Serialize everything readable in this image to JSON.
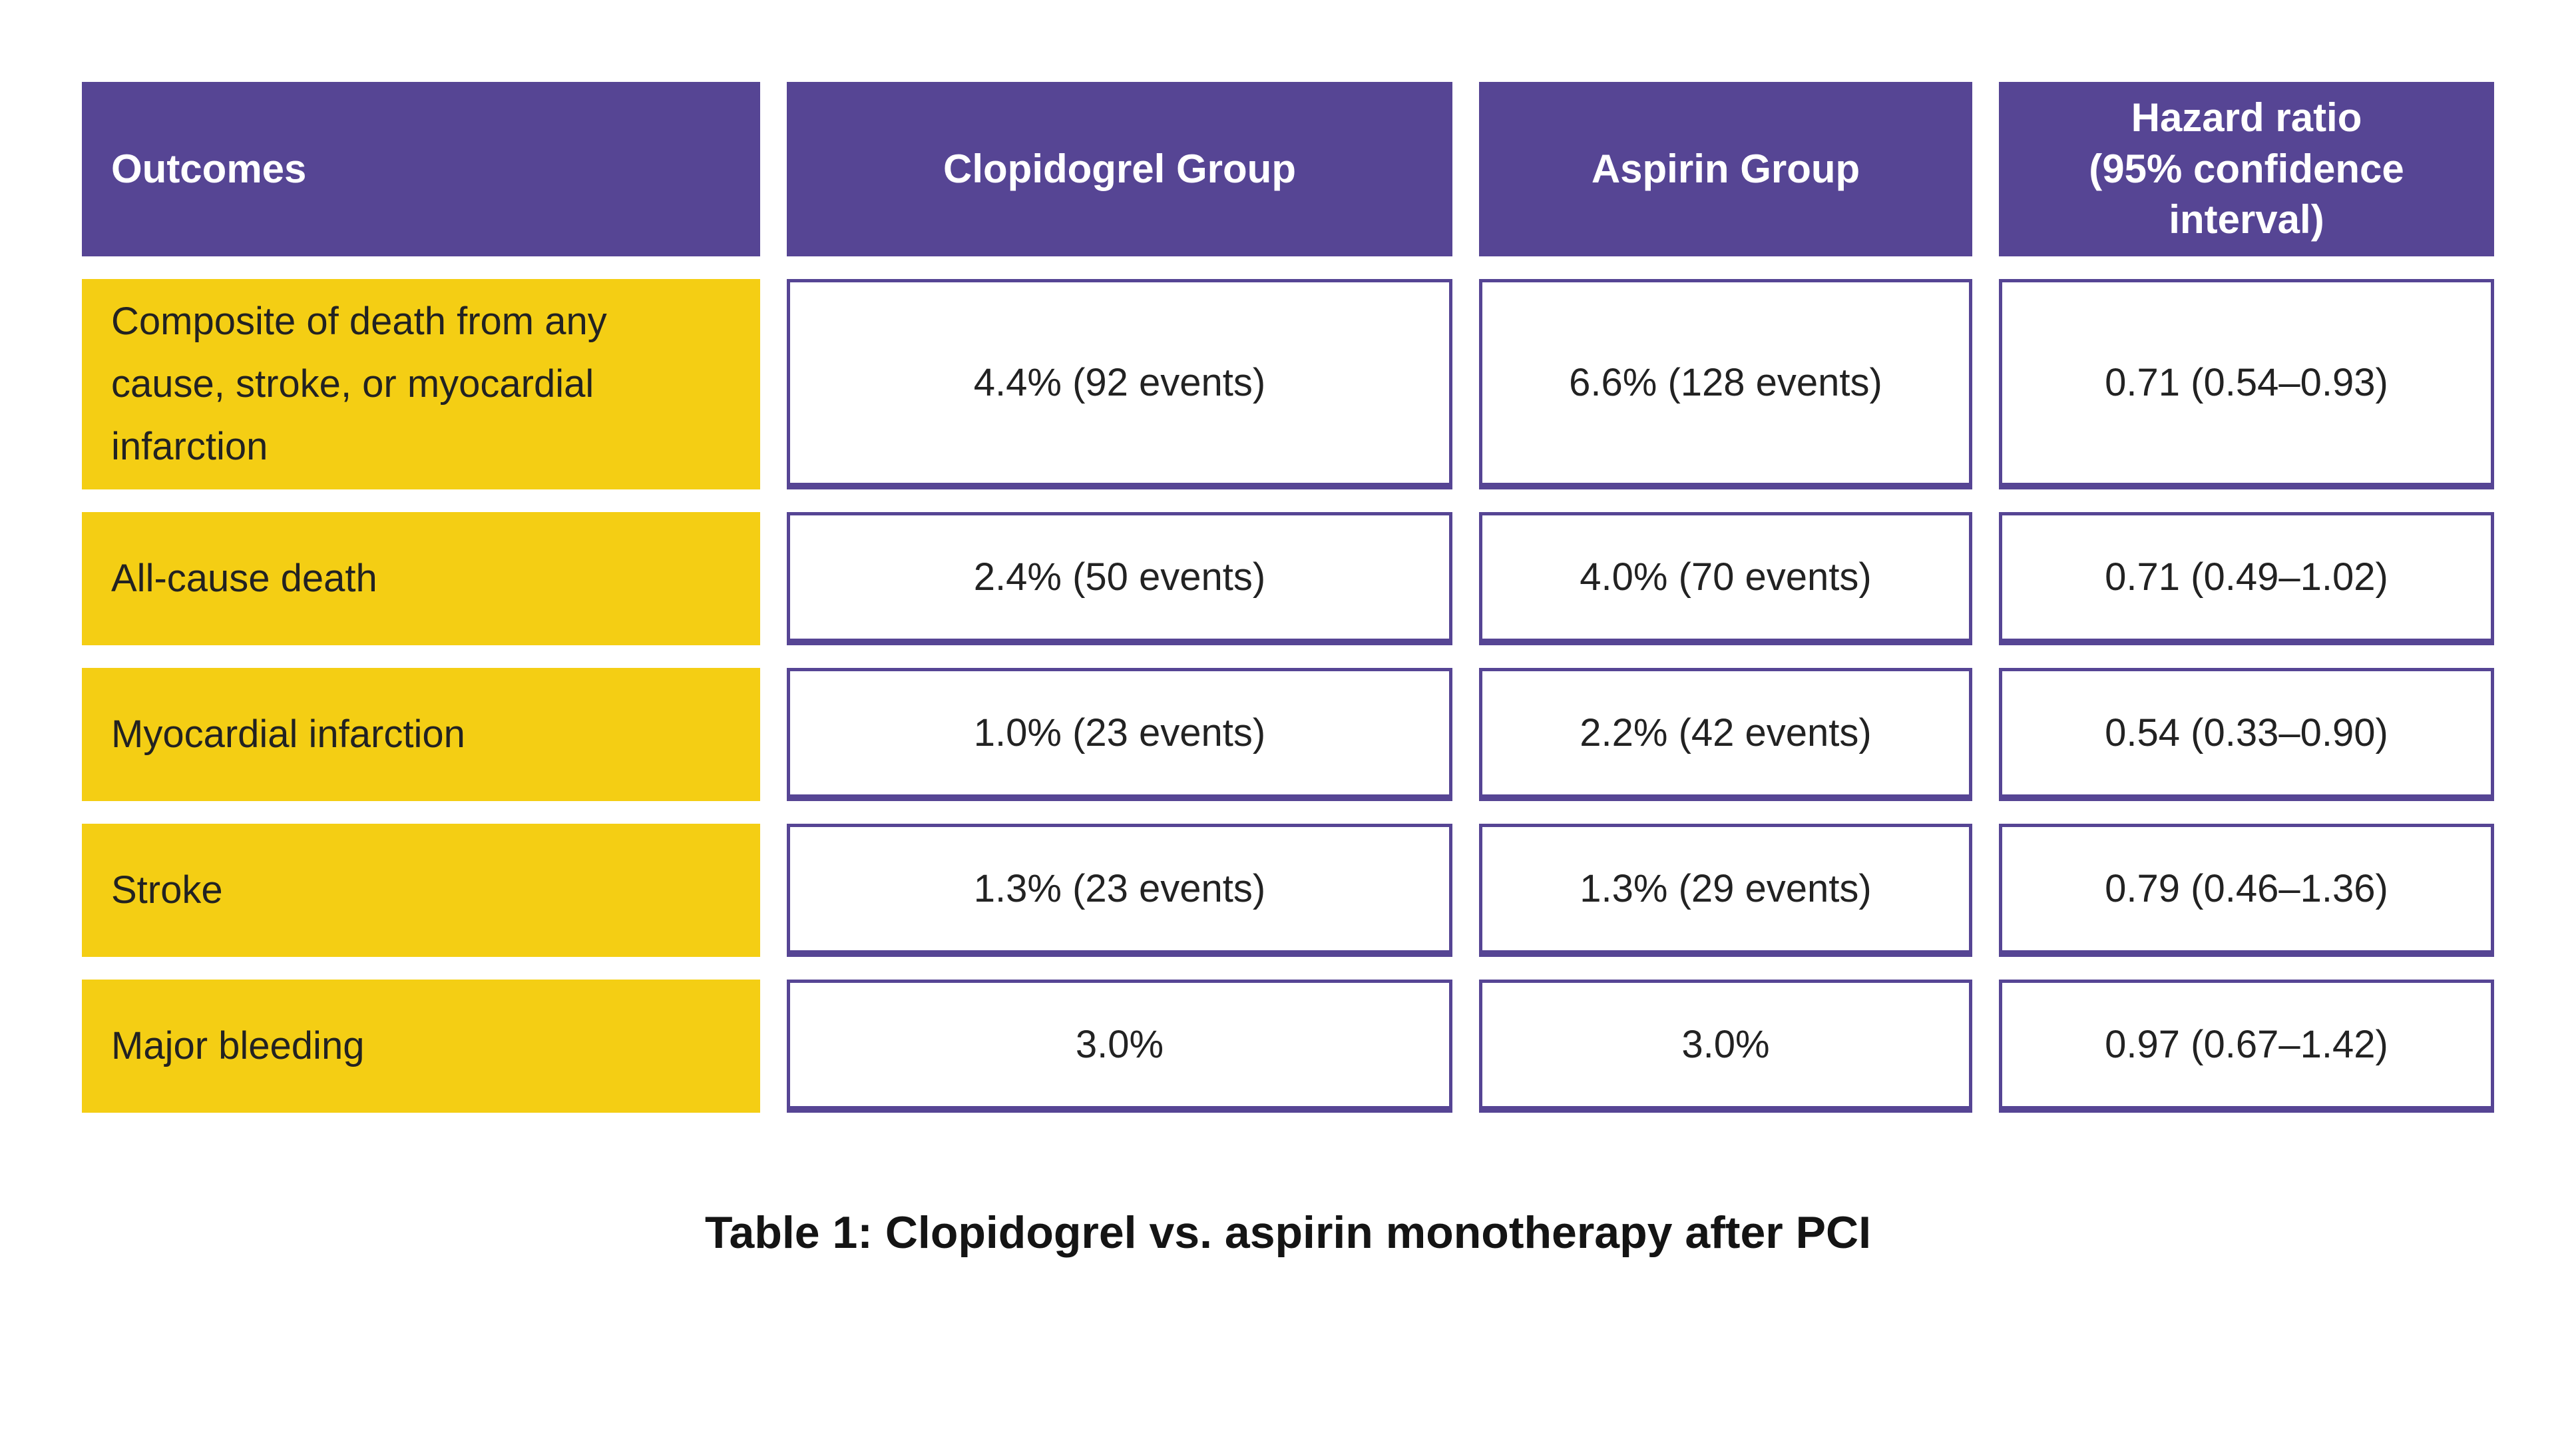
{
  "table": {
    "headers": {
      "outcomes": "Outcomes",
      "clopidogrel": "Clopidogrel Group",
      "aspirin": "Aspirin Group",
      "hazard_ratio": "Hazard ratio\n(95% confidence\ninterval)"
    },
    "rows": [
      {
        "outcome": "Composite of death from any cause, stroke, or myocardial infarction",
        "clopidogrel": "4.4% (92 events)",
        "aspirin": "6.6% (128 events)",
        "hazard_ratio": "0.71 (0.54–0.93)"
      },
      {
        "outcome": "All-cause death",
        "clopidogrel": "2.4% (50 events)",
        "aspirin": "4.0% (70 events)",
        "hazard_ratio": "0.71 (0.49–1.02)"
      },
      {
        "outcome": "Myocardial infarction",
        "clopidogrel": "1.0% (23 events)",
        "aspirin": "2.2% (42 events)",
        "hazard_ratio": "0.54 (0.33–0.90)"
      },
      {
        "outcome": "Stroke",
        "clopidogrel": "1.3% (23 events)",
        "aspirin": "1.3% (29 events)",
        "hazard_ratio": "0.79 (0.46–1.36)"
      },
      {
        "outcome": "Major bleeding",
        "clopidogrel": "3.0%",
        "aspirin": "3.0%",
        "hazard_ratio": "0.97 (0.67–1.42)"
      }
    ]
  },
  "caption": "Table 1: Clopidogrel vs. aspirin monotherapy after PCI",
  "colors": {
    "header_purple": "#564594",
    "row_yellow": "#F4CE14",
    "cell_border": "#564594",
    "text_dark": "#222222",
    "header_text": "#FFFFFF",
    "background": "#FFFFFF"
  },
  "chart_data": {
    "type": "table",
    "title": "Table 1: Clopidogrel vs. aspirin monotherapy after PCI",
    "columns": [
      "Outcomes",
      "Clopidogrel Group",
      "Aspirin Group",
      "Hazard ratio (95% confidence interval)"
    ],
    "rows": [
      [
        "Composite of death from any cause, stroke, or myocardial infarction",
        "4.4% (92 events)",
        "6.6% (128 events)",
        "0.71 (0.54–0.93)"
      ],
      [
        "All-cause death",
        "2.4% (50 events)",
        "4.0% (70 events)",
        "0.71 (0.49–1.02)"
      ],
      [
        "Myocardial infarction",
        "1.0% (23 events)",
        "2.2% (42 events)",
        "0.54 (0.33–0.90)"
      ],
      [
        "Stroke",
        "1.3% (23 events)",
        "1.3% (29 events)",
        "0.79 (0.46–1.36)"
      ],
      [
        "Major bleeding",
        "3.0%",
        "3.0%",
        "0.97 (0.67–1.42)"
      ]
    ],
    "values": {
      "clopidogrel_pct": [
        4.4,
        2.4,
        1.0,
        1.3,
        3.0
      ],
      "clopidogrel_events": [
        92,
        50,
        23,
        23,
        null
      ],
      "aspirin_pct": [
        6.6,
        4.0,
        2.2,
        1.3,
        3.0
      ],
      "aspirin_events": [
        128,
        70,
        42,
        29,
        null
      ],
      "hazard_ratio": [
        0.71,
        0.71,
        0.54,
        0.79,
        0.97
      ],
      "ci_low": [
        0.54,
        0.49,
        0.33,
        0.46,
        0.67
      ],
      "ci_high": [
        0.93,
        1.02,
        0.9,
        1.36,
        1.42
      ]
    }
  }
}
